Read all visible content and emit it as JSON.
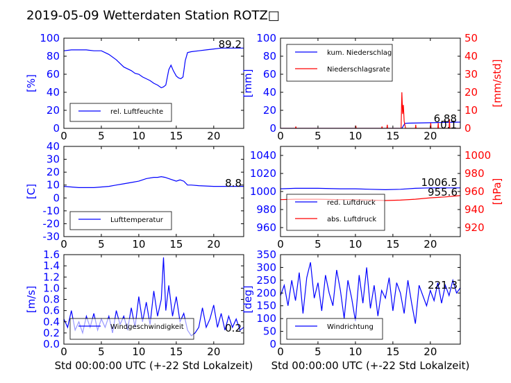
{
  "title": "2019-05-09 Wetterdaten Station ROTZ□",
  "colors": {
    "primary": "#0000ff",
    "secondary": "#ff0000",
    "text": "#000000"
  },
  "chart_data": [
    {
      "type": "line",
      "ylabel": "[%]",
      "xlim": [
        0,
        24
      ],
      "ylim": [
        0,
        100
      ],
      "xticks": [
        0,
        5,
        10,
        15,
        20
      ],
      "yticks": [
        0,
        20,
        40,
        60,
        80,
        100
      ],
      "annotation": "89.2",
      "grid": false,
      "legend_position": "lower-left",
      "series": [
        {
          "name": "rel. Luftfeuchte",
          "color": "#0000ff",
          "x": [
            0,
            1,
            2,
            3,
            4,
            5,
            6,
            7,
            7.5,
            8,
            8.5,
            9,
            9.5,
            10,
            10.5,
            11,
            11.5,
            12,
            12.5,
            13,
            13.3,
            13.6,
            14,
            14.3,
            14.6,
            15,
            15.3,
            15.6,
            15.9,
            16.2,
            16.5,
            17,
            18,
            19,
            20,
            21,
            22,
            23,
            24
          ],
          "y": [
            86,
            87,
            87,
            87,
            86,
            86,
            82,
            76,
            72,
            68,
            66,
            64,
            61,
            60,
            57,
            55,
            53,
            50,
            48,
            45,
            46,
            48,
            65,
            70,
            64,
            58,
            56,
            55,
            57,
            75,
            84,
            85,
            86,
            87,
            88,
            89,
            89,
            89,
            89
          ]
        }
      ]
    },
    {
      "type": "line",
      "ylabel": "[mm]",
      "y2label": "[mm/std]",
      "xlim": [
        0,
        24
      ],
      "ylim": [
        0,
        100
      ],
      "y2lim": [
        0,
        50
      ],
      "xticks": [
        0,
        5,
        10,
        15,
        20
      ],
      "yticks": [
        0,
        20,
        40,
        60,
        80,
        100
      ],
      "y2ticks": [
        0,
        10,
        20,
        30,
        40,
        50
      ],
      "annotations": [
        "6.88",
        "0.1"
      ],
      "grid": false,
      "legend_position": "top-left",
      "series": [
        {
          "name": "kum. Niederschlag",
          "color": "#0000ff",
          "axis": "left",
          "x": [
            0,
            16.2,
            16.6,
            17,
            20,
            24
          ],
          "y": [
            0,
            0,
            5.5,
            5.8,
            6.2,
            6.9
          ]
        },
        {
          "name": "Niederschlagsrate",
          "color": "#ff0000",
          "axis": "right",
          "x": [
            0,
            2,
            2.05,
            2.1,
            10,
            10.05,
            10.1,
            13.5,
            13.55,
            13.6,
            14.2,
            14.25,
            14.3,
            16.1,
            16.2,
            16.3,
            16.4,
            16.5,
            16.6,
            16.7,
            17.0,
            18.0,
            18.05,
            18.1,
            20.0,
            20.05,
            20.1,
            21.0,
            21.05,
            21.1,
            22.5,
            22.55,
            22.6,
            24
          ],
          "y": [
            0,
            0,
            1,
            0,
            0,
            1.5,
            0,
            0,
            1,
            0,
            0,
            2,
            0,
            0,
            20,
            8,
            13,
            4,
            2,
            0,
            0,
            0,
            2,
            0,
            0,
            3,
            0,
            0,
            3,
            0,
            0,
            5,
            0,
            0
          ]
        }
      ]
    },
    {
      "type": "line",
      "ylabel": "[C]",
      "xlim": [
        0,
        24
      ],
      "ylim": [
        -30,
        40
      ],
      "xticks": [
        0,
        5,
        10,
        15,
        20
      ],
      "yticks": [
        -30,
        -20,
        -10,
        0,
        10,
        20,
        30,
        40
      ],
      "annotation": "8.8",
      "grid": false,
      "legend_position": "lower-left",
      "series": [
        {
          "name": "Lufttemperatur",
          "color": "#0000ff",
          "x": [
            0,
            2,
            4,
            6,
            7,
            8,
            9,
            10,
            11,
            12,
            12.5,
            13,
            13.5,
            14,
            15,
            15.5,
            16,
            16.5,
            17,
            18,
            20,
            22,
            24
          ],
          "y": [
            9,
            8,
            8,
            9,
            10,
            11,
            12,
            13,
            15,
            16,
            16,
            16.5,
            16,
            15,
            13,
            14,
            13,
            10,
            10,
            9.5,
            9,
            9,
            9
          ]
        }
      ]
    },
    {
      "type": "line",
      "y2label": "[hPa]",
      "xlim": [
        0,
        24
      ],
      "ylim": [
        950,
        1050
      ],
      "y2lim": [
        910,
        1010
      ],
      "xticks": [
        0,
        5,
        10,
        15,
        20
      ],
      "yticks": [
        960,
        980,
        1000,
        1020,
        1040
      ],
      "y2ticks": [
        920,
        940,
        960,
        980,
        1000
      ],
      "annotations": [
        "1006.5",
        "955.6"
      ],
      "grid": false,
      "legend_position": "lower-left",
      "series": [
        {
          "name": "red. Luftdruck",
          "color": "#0000ff",
          "axis": "left",
          "x": [
            0,
            2,
            5,
            8,
            10,
            12,
            14,
            16,
            18,
            20,
            22,
            24
          ],
          "y": [
            1003,
            1003.5,
            1003.5,
            1003,
            1003,
            1002.5,
            1002,
            1002.5,
            1003.5,
            1004,
            1004,
            1004
          ]
        },
        {
          "name": "abs. Luftdruck",
          "color": "#ff0000",
          "axis": "right",
          "x": [
            0,
            2,
            5,
            8,
            10,
            12,
            14,
            16,
            18,
            20,
            22,
            24
          ],
          "y": [
            951,
            951.5,
            951.5,
            951,
            951,
            950.5,
            950,
            950.5,
            951.5,
            953,
            954,
            955.5
          ]
        }
      ]
    },
    {
      "type": "line",
      "ylabel": "[m/s]",
      "xlabel": "Std 00:00:00 UTC (+-22 Std Lokalzeit)",
      "xlim": [
        0,
        24
      ],
      "ylim": [
        0,
        1.6
      ],
      "xticks": [
        0,
        5,
        10,
        15,
        20
      ],
      "yticks": [
        0.0,
        0.2,
        0.4,
        0.6,
        0.8,
        1.0,
        1.2,
        1.4,
        1.6
      ],
      "annotation": "0.2",
      "grid": false,
      "legend_position": "lower-left",
      "series": [
        {
          "name": "Windgeschwindigkeit",
          "color": "#0000ff",
          "x": [
            0,
            0.5,
            1,
            1.5,
            2,
            2.5,
            3,
            3.5,
            4,
            4.5,
            5,
            5.5,
            6,
            6.5,
            7,
            7.5,
            8,
            8.5,
            9,
            9.5,
            10,
            10.5,
            11,
            11.5,
            12,
            12.5,
            13,
            13.3,
            13.6,
            14,
            14.5,
            15,
            15.5,
            16,
            16.5,
            17,
            17.5,
            18,
            18.5,
            19,
            19.5,
            20,
            20.5,
            21,
            21.5,
            22,
            22.5,
            23,
            23.5,
            24
          ],
          "y": [
            0.45,
            0.3,
            0.6,
            0.25,
            0.4,
            0.2,
            0.5,
            0.3,
            0.55,
            0.25,
            0.45,
            0.3,
            0.5,
            0.2,
            0.6,
            0.35,
            0.5,
            0.25,
            0.65,
            0.3,
            0.85,
            0.4,
            0.75,
            0.35,
            0.95,
            0.5,
            0.8,
            1.55,
            0.6,
            1.05,
            0.5,
            0.85,
            0.4,
            0.55,
            0.25,
            0.15,
            0.2,
            0.3,
            0.65,
            0.3,
            0.45,
            0.7,
            0.3,
            0.55,
            0.25,
            0.5,
            0.3,
            0.45,
            0.25,
            0.3
          ]
        }
      ]
    },
    {
      "type": "line",
      "ylabel": "[deg]",
      "xlabel": "Std 00:00:00 UTC (+-22 Std Lokalzeit)",
      "xlim": [
        0,
        24
      ],
      "ylim": [
        0,
        350
      ],
      "xticks": [
        0,
        5,
        10,
        15,
        20
      ],
      "yticks": [
        0,
        50,
        100,
        150,
        200,
        250,
        300,
        350
      ],
      "annotation": "221.3",
      "grid": false,
      "legend_position": "lower-left",
      "series": [
        {
          "name": "Windrichtung",
          "color": "#0000ff",
          "x": [
            0,
            0.5,
            1,
            1.5,
            2,
            2.5,
            3,
            3.5,
            4,
            4.5,
            5,
            5.5,
            6,
            6.5,
            7,
            7.5,
            8,
            8.5,
            9,
            9.5,
            10,
            10.5,
            11,
            11.5,
            12,
            12.5,
            13,
            13.5,
            14,
            14.5,
            15,
            15.5,
            16,
            16.5,
            17,
            17.5,
            18,
            18.5,
            19,
            19.5,
            20,
            20.5,
            21,
            21.5,
            22,
            22.5,
            23,
            23.5,
            24
          ],
          "y": [
            190,
            230,
            150,
            250,
            170,
            280,
            120,
            260,
            320,
            180,
            240,
            130,
            270,
            200,
            150,
            290,
            210,
            100,
            250,
            180,
            90,
            270,
            160,
            300,
            140,
            230,
            110,
            210,
            180,
            260,
            130,
            240,
            200,
            120,
            250,
            160,
            80,
            230,
            190,
            150,
            210,
            170,
            240,
            160,
            230,
            190,
            250,
            200,
            220
          ]
        }
      ]
    }
  ]
}
